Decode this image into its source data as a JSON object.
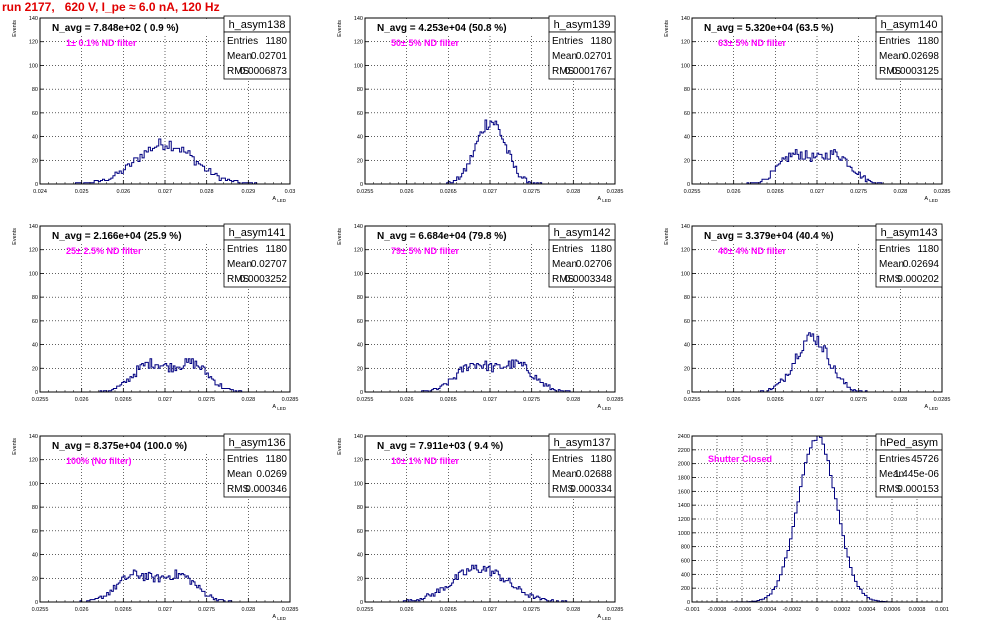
{
  "header": {
    "run_title": "run 2177,   620 V, I_pe ≈ 6.0 nA, 120 Hz"
  },
  "colors": {
    "histogram_line": "#000080",
    "title_text": "#e00000",
    "filter_label": "#ff00ff",
    "frame": "#000000"
  },
  "chart_data": [
    {
      "type": "bar",
      "hist_name": "h_asym138",
      "stats": {
        "entries_label": "Entries",
        "entries": "1180",
        "mean_label": "Mean",
        "mean": "0.02701",
        "rms_label": "RMS",
        "rms": "0.0006873"
      },
      "navg_label": "N_avg = 7.848e+02 ( 0.9 %)",
      "filter_label": "1± 0.1% ND filter",
      "ylabel": "Events",
      "xlabel": "A_LED",
      "xlim": [
        0.024,
        0.03
      ],
      "ylim": [
        0,
        140
      ],
      "xticks": [
        0.024,
        0.025,
        0.026,
        0.027,
        0.028,
        0.029,
        0.03
      ],
      "xtick_labels": [
        "0.024",
        "0.025",
        "0.026",
        "0.027",
        "0.028",
        "0.029",
        "0.03"
      ],
      "yticks": [
        0,
        20,
        40,
        60,
        80,
        100,
        120,
        140
      ],
      "ytick_labels": [
        "0",
        "20",
        "40",
        "60",
        "80",
        "100",
        "120",
        "140"
      ],
      "grid": true,
      "dist": {
        "mean": 0.02701,
        "sigma": 0.0006873,
        "entries": 1180,
        "binw": 5e-05
      }
    },
    {
      "type": "bar",
      "hist_name": "h_asym139",
      "stats": {
        "entries_label": "Entries",
        "entries": "1180",
        "mean_label": "Mean",
        "mean": "0.02701",
        "rms_label": "RMS",
        "rms": "0.0001767"
      },
      "navg_label": "N_avg = 4.253e+04 (50.8 %)",
      "filter_label": "50± 5% ND filter",
      "ylabel": "Events",
      "xlabel": "A_LED",
      "xlim": [
        0.0255,
        0.0285
      ],
      "ylim": [
        0,
        140
      ],
      "xticks": [
        0.0255,
        0.026,
        0.0265,
        0.027,
        0.0275,
        0.028,
        0.0285
      ],
      "xtick_labels": [
        "0.0255",
        "0.026",
        "0.0265",
        "0.027",
        "0.0275",
        "0.028",
        "0.0285"
      ],
      "yticks": [
        0,
        20,
        40,
        60,
        80,
        100,
        120,
        140
      ],
      "ytick_labels": [
        "0",
        "20",
        "40",
        "60",
        "80",
        "100",
        "120",
        "140"
      ],
      "grid": true,
      "dist": {
        "mean": 0.02701,
        "sigma": 0.0001767,
        "entries": 1180,
        "binw": 2e-05
      }
    },
    {
      "type": "bar",
      "hist_name": "h_asym140",
      "stats": {
        "entries_label": "Entries",
        "entries": "1180",
        "mean_label": "Mean",
        "mean": "0.02698",
        "rms_label": "RMS",
        "rms": "0.0003125"
      },
      "navg_label": "N_avg = 5.320e+04 (63.5 %)",
      "filter_label": "63± 5% ND filter",
      "ylabel": "Events",
      "xlabel": "A_LED",
      "xlim": [
        0.0255,
        0.0285
      ],
      "ylim": [
        0,
        140
      ],
      "xticks": [
        0.0255,
        0.026,
        0.0265,
        0.027,
        0.0275,
        0.028,
        0.0285
      ],
      "xtick_labels": [
        "0.0255",
        "0.026",
        "0.0265",
        "0.027",
        "0.0275",
        "0.028",
        "0.0285"
      ],
      "yticks": [
        0,
        20,
        40,
        60,
        80,
        100,
        120,
        140
      ],
      "ytick_labels": [
        "0",
        "20",
        "40",
        "60",
        "80",
        "100",
        "120",
        "140"
      ],
      "grid": true,
      "dist": {
        "mean": 0.02698,
        "sigma": 0.0003125,
        "entries": 1180,
        "binw": 2e-05,
        "bimodal": true
      }
    },
    {
      "type": "bar",
      "hist_name": "h_asym141",
      "stats": {
        "entries_label": "Entries",
        "entries": "1180",
        "mean_label": "Mean",
        "mean": "0.02707",
        "rms_label": "RMS",
        "rms": "0.0003252"
      },
      "navg_label": "N_avg = 2.166e+04 (25.9 %)",
      "filter_label": "25± 2.5% ND filter",
      "ylabel": "Events",
      "xlabel": "A_LED",
      "xlim": [
        0.0255,
        0.0285
      ],
      "ylim": [
        0,
        140
      ],
      "xticks": [
        0.0255,
        0.026,
        0.0265,
        0.027,
        0.0275,
        0.028,
        0.0285
      ],
      "xtick_labels": [
        "0.0255",
        "0.026",
        "0.0265",
        "0.027",
        "0.0275",
        "0.028",
        "0.0285"
      ],
      "yticks": [
        0,
        20,
        40,
        60,
        80,
        100,
        120,
        140
      ],
      "ytick_labels": [
        "0",
        "20",
        "40",
        "60",
        "80",
        "100",
        "120",
        "140"
      ],
      "grid": true,
      "dist": {
        "mean": 0.02707,
        "sigma": 0.0003252,
        "entries": 1180,
        "binw": 2e-05,
        "bimodal": true
      }
    },
    {
      "type": "bar",
      "hist_name": "h_asym142",
      "stats": {
        "entries_label": "Entries",
        "entries": "1180",
        "mean_label": "Mean",
        "mean": "0.02706",
        "rms_label": "RMS",
        "rms": "0.0003348"
      },
      "navg_label": "N_avg = 6.684e+04 (79.8 %)",
      "filter_label": "79± 5% ND filter",
      "ylabel": "Events",
      "xlabel": "A_LED",
      "xlim": [
        0.0255,
        0.0285
      ],
      "ylim": [
        0,
        140
      ],
      "xticks": [
        0.0255,
        0.026,
        0.0265,
        0.027,
        0.0275,
        0.028,
        0.0285
      ],
      "xtick_labels": [
        "0.0255",
        "0.026",
        "0.0265",
        "0.027",
        "0.0275",
        "0.028",
        "0.0285"
      ],
      "yticks": [
        0,
        20,
        40,
        60,
        80,
        100,
        120,
        140
      ],
      "ytick_labels": [
        "0",
        "20",
        "40",
        "60",
        "80",
        "100",
        "120",
        "140"
      ],
      "grid": true,
      "dist": {
        "mean": 0.02706,
        "sigma": 0.0003348,
        "entries": 1180,
        "binw": 2e-05,
        "bimodal": true
      }
    },
    {
      "type": "bar",
      "hist_name": "h_asym143",
      "stats": {
        "entries_label": "Entries",
        "entries": "1180",
        "mean_label": "Mean",
        "mean": "0.02694",
        "rms_label": "RMS",
        "rms": "0.000202"
      },
      "navg_label": "N_avg = 3.379e+04 (40.4 %)",
      "filter_label": "40± 4% ND filter",
      "ylabel": "Events",
      "xlabel": "A_LED",
      "xlim": [
        0.0255,
        0.0285
      ],
      "ylim": [
        0,
        140
      ],
      "xticks": [
        0.0255,
        0.026,
        0.0265,
        0.027,
        0.0275,
        0.028,
        0.0285
      ],
      "xtick_labels": [
        "0.0255",
        "0.026",
        "0.0265",
        "0.027",
        "0.0275",
        "0.028",
        "0.0285"
      ],
      "yticks": [
        0,
        20,
        40,
        60,
        80,
        100,
        120,
        140
      ],
      "ytick_labels": [
        "0",
        "20",
        "40",
        "60",
        "80",
        "100",
        "120",
        "140"
      ],
      "grid": true,
      "dist": {
        "mean": 0.02694,
        "sigma": 0.000202,
        "entries": 1180,
        "binw": 2e-05
      }
    },
    {
      "type": "bar",
      "hist_name": "h_asym136",
      "stats": {
        "entries_label": "Entries",
        "entries": "1180",
        "mean_label": "Mean",
        "mean": "0.0269",
        "rms_label": "RMS",
        "rms": "0.000346"
      },
      "navg_label": "N_avg = 8.375e+04 (100.0 %)",
      "filter_label": "100% (No filter)",
      "ylabel": "Events",
      "xlabel": "A_LED",
      "xlim": [
        0.0255,
        0.0285
      ],
      "ylim": [
        0,
        140
      ],
      "xticks": [
        0.0255,
        0.026,
        0.0265,
        0.027,
        0.0275,
        0.028,
        0.0285
      ],
      "xtick_labels": [
        "0.0255",
        "0.026",
        "0.0265",
        "0.027",
        "0.0275",
        "0.028",
        "0.0285"
      ],
      "yticks": [
        0,
        20,
        40,
        60,
        80,
        100,
        120,
        140
      ],
      "ytick_labels": [
        "0",
        "20",
        "40",
        "60",
        "80",
        "100",
        "120",
        "140"
      ],
      "grid": true,
      "dist": {
        "mean": 0.0269,
        "sigma": 0.000346,
        "entries": 1180,
        "binw": 2e-05,
        "bimodal": true
      }
    },
    {
      "type": "bar",
      "hist_name": "h_asym137",
      "stats": {
        "entries_label": "Entries",
        "entries": "1180",
        "mean_label": "Mean",
        "mean": "0.02688",
        "rms_label": "RMS",
        "rms": "0.000334"
      },
      "navg_label": "N_avg = 7.911e+03 ( 9.4 %)",
      "filter_label": "10± 1% ND filter",
      "ylabel": "Events",
      "xlabel": "A_LED",
      "xlim": [
        0.0255,
        0.0285
      ],
      "ylim": [
        0,
        140
      ],
      "xticks": [
        0.0255,
        0.026,
        0.0265,
        0.027,
        0.0275,
        0.028,
        0.0285
      ],
      "xtick_labels": [
        "0.0255",
        "0.026",
        "0.0265",
        "0.027",
        "0.0275",
        "0.028",
        "0.0285"
      ],
      "yticks": [
        0,
        20,
        40,
        60,
        80,
        100,
        120,
        140
      ],
      "ytick_labels": [
        "0",
        "20",
        "40",
        "60",
        "80",
        "100",
        "120",
        "140"
      ],
      "grid": true,
      "dist": {
        "mean": 0.02688,
        "sigma": 0.000334,
        "entries": 1180,
        "binw": 2e-05
      }
    },
    {
      "type": "bar",
      "hist_name": "hPed_asym",
      "stats": {
        "entries_label": "Entries",
        "entries": "45726",
        "mean_label": "Mean",
        "mean": "1.445e-06",
        "rms_label": "RMS",
        "rms": "0.000153"
      },
      "navg_label": "",
      "filter_label": "Shutter Closed",
      "ylabel": "",
      "xlabel": "",
      "xlim": [
        -0.001,
        0.001
      ],
      "ylim": [
        0,
        2400
      ],
      "xticks": [
        -0.001,
        -0.0008,
        -0.0006,
        -0.0004,
        -0.0002,
        0,
        0.0002,
        0.0004,
        0.0006,
        0.0008,
        0.001
      ],
      "xtick_labels": [
        "-0.001",
        "-0.0008",
        "-0.0006",
        "-0.0004",
        "-0.0002",
        "0",
        "0.0002",
        "0.0004",
        "0.0006",
        "0.0008",
        "0.001"
      ],
      "yticks": [
        0,
        200,
        400,
        600,
        800,
        1000,
        1200,
        1400,
        1600,
        1800,
        2000,
        2200,
        2400
      ],
      "ytick_labels": [
        "0",
        "200",
        "400",
        "600",
        "800",
        "1000",
        "1200",
        "1400",
        "1600",
        "1800",
        "2000",
        "2200",
        "2400"
      ],
      "grid": true,
      "dist": {
        "mean": 1.445e-06,
        "sigma": 0.000153,
        "entries": 45726,
        "binw": 2e-05
      }
    }
  ]
}
